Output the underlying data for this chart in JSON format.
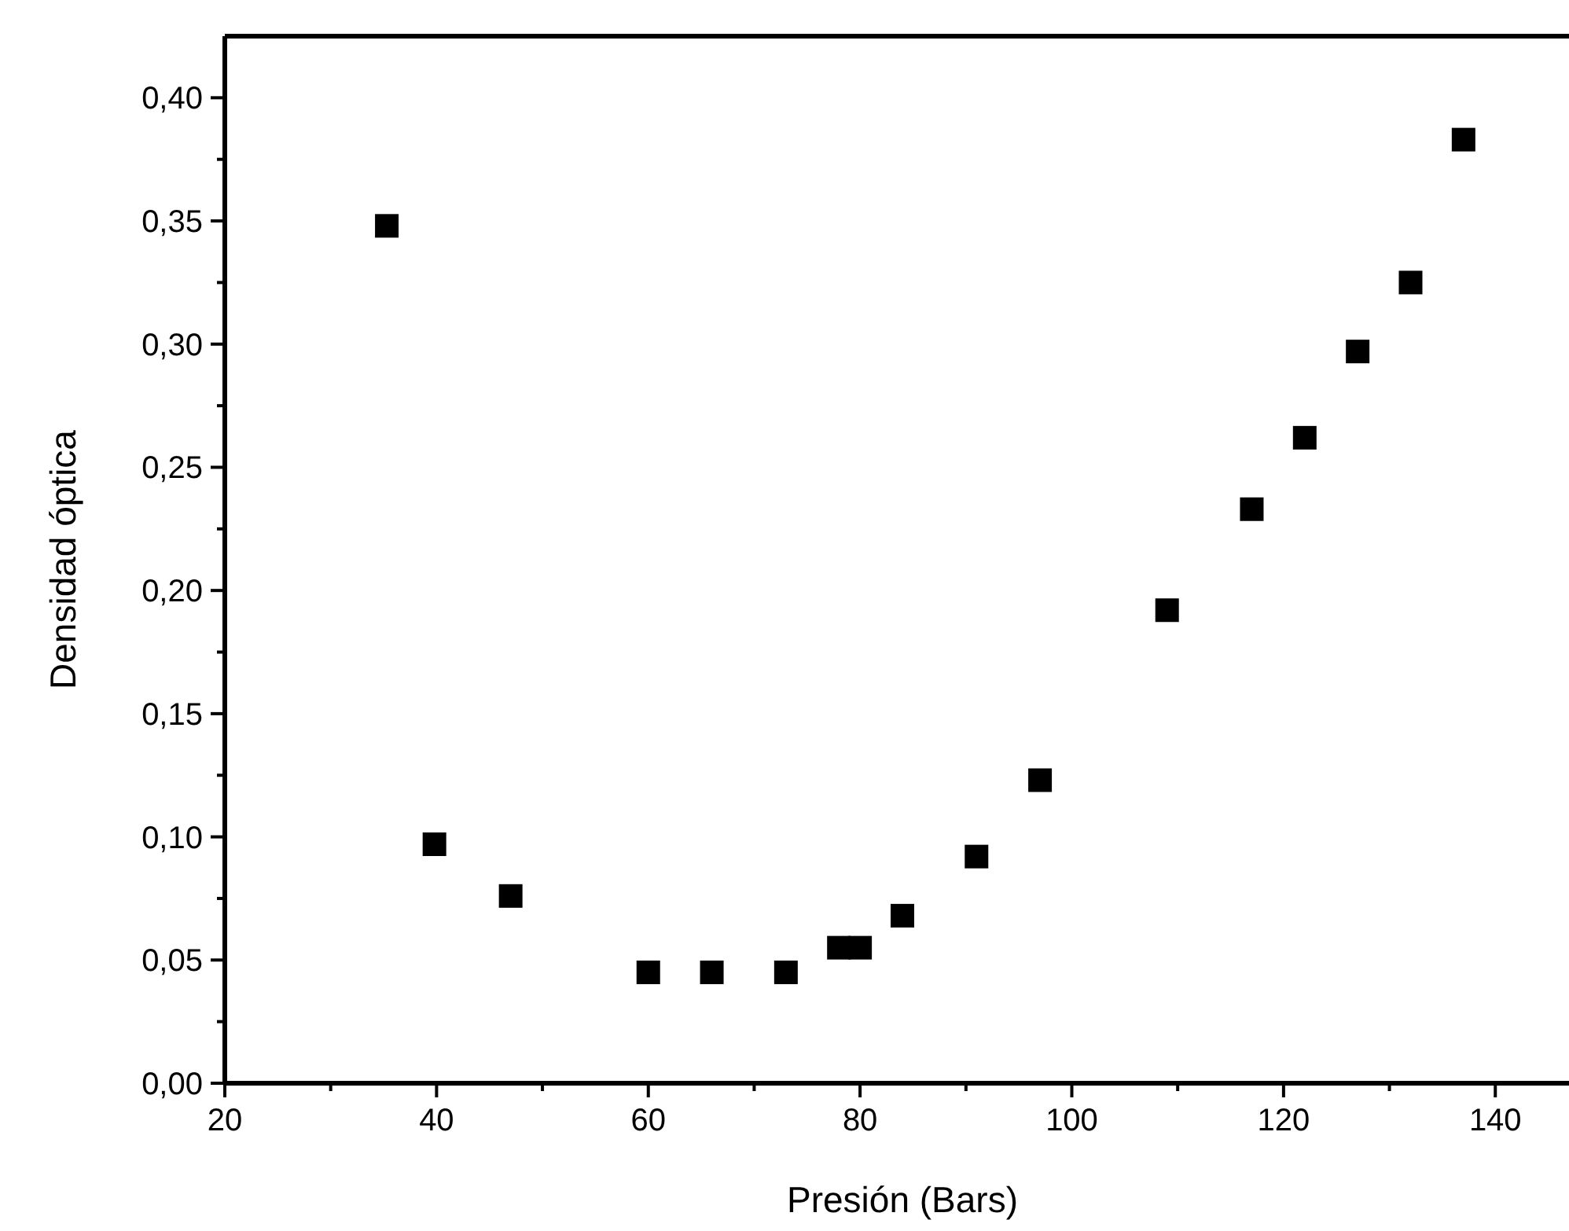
{
  "chart_data": {
    "type": "scatter",
    "xlabel": "Presión (Bars)",
    "ylabel": "Densidad óptica",
    "x": [
      35.3,
      39.8,
      47,
      60,
      66,
      73,
      78,
      80,
      84,
      91,
      97,
      109,
      117,
      122,
      127,
      132,
      137
    ],
    "values": [
      0.348,
      0.097,
      0.076,
      0.045,
      0.045,
      0.045,
      0.055,
      0.055,
      0.068,
      0.092,
      0.123,
      0.192,
      0.233,
      0.262,
      0.297,
      0.325,
      0.383
    ],
    "color": "#000000",
    "marker": "square",
    "xlim": [
      20,
      148
    ],
    "xticks": [
      20,
      40,
      60,
      80,
      100,
      120,
      140
    ],
    "ylim": [
      0,
      0.425
    ],
    "yticks": [
      {
        "value": 0,
        "label": "0,00"
      },
      {
        "value": 0.05,
        "label": "0,05"
      },
      {
        "value": 0.1,
        "label": "0,10"
      },
      {
        "value": 0.15,
        "label": "0,15"
      },
      {
        "value": 0.2,
        "label": "0,20"
      },
      {
        "value": 0.25,
        "label": "0,25"
      },
      {
        "value": 0.3,
        "label": "0,30"
      },
      {
        "value": 0.35,
        "label": "0,35"
      },
      {
        "value": 0.4,
        "label": "0,40"
      }
    ],
    "grid": false
  }
}
